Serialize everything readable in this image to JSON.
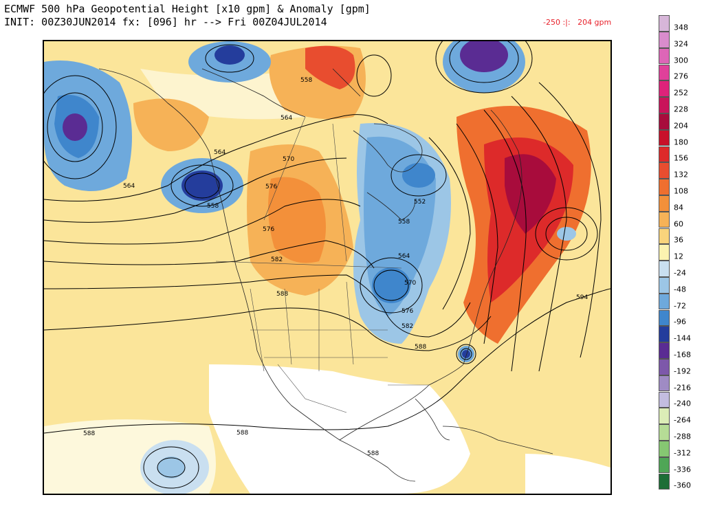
{
  "title_line1": "ECMWF 500 hPa Geopotential Height [x10 gpm] & Anomaly [gpm]",
  "title_line2": "INIT: 00Z30JUN2014 fx: [096] hr --> Fri 00Z04JUL2014",
  "anomaly_range": "-250 :|:   204 gpm",
  "legend": {
    "labels": [
      "348",
      "324",
      "300",
      "276",
      "252",
      "228",
      "204",
      "180",
      "156",
      "132",
      "108",
      "84",
      "60",
      "36",
      "12",
      "-24",
      "-48",
      "-72",
      "-96",
      "-144",
      "-168",
      "-192",
      "-216",
      "-240",
      "-264",
      "-288",
      "-312",
      "-336",
      "-360"
    ],
    "colors": [
      "#d7b6d9",
      "#d98ccc",
      "#dd66b7",
      "#e0409a",
      "#de237a",
      "#c9145a",
      "#a80c3c",
      "#c8112a",
      "#dd2a2a",
      "#e84d2f",
      "#ef6f2f",
      "#f3903a",
      "#f6b257",
      "#f9d47c",
      "#fcf3b0",
      "#c9dff0",
      "#9cc6e6",
      "#6ea9dc",
      "#3f86cc",
      "#243d9c",
      "#5a2c93",
      "#7d58aa",
      "#9f8bc4",
      "#c3bde0",
      "#dcedb7",
      "#b6dc96",
      "#86c772",
      "#4fa656",
      "#1d6e36"
    ]
  },
  "contour_labels": [
    "558",
    "564",
    "570",
    "564",
    "564",
    "558",
    "576",
    "582",
    "588",
    "576",
    "552",
    "558",
    "564",
    "570",
    "576",
    "582",
    "588",
    "594",
    "588",
    "588",
    "588"
  ],
  "anomaly_labels": []
}
